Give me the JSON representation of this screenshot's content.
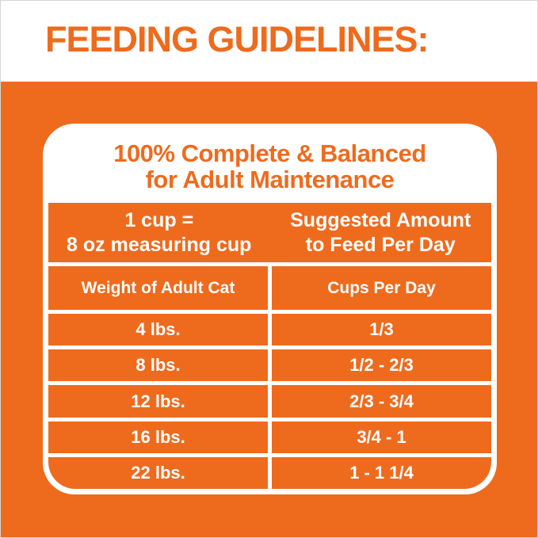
{
  "title": "FEEDING GUIDELINES:",
  "card": {
    "header_line1": "100% Complete & Balanced",
    "header_line2": "for Adult Maintenance",
    "table": {
      "left_header_line1": "1 cup =",
      "left_header_line2": "8 oz measuring cup",
      "right_header_line1": "Suggested Amount",
      "right_header_line2": "to Feed Per Day",
      "col_subheaders": [
        "Weight of Adult Cat",
        "Cups Per Day"
      ],
      "rows": [
        {
          "weight": "4 lbs.",
          "cups": "1/3"
        },
        {
          "weight": "8 lbs.",
          "cups": "1/2 - 2/3"
        },
        {
          "weight": "12 lbs.",
          "cups": "2/3 - 3/4"
        },
        {
          "weight": "16 lbs.",
          "cups": "3/4 - 1"
        },
        {
          "weight": "22 lbs.",
          "cups": "1 - 1 1/4"
        }
      ]
    }
  },
  "colors": {
    "brand_orange": "#ee6b1e",
    "card_white": "#ffffff",
    "table_text_white": "#ffffff"
  }
}
